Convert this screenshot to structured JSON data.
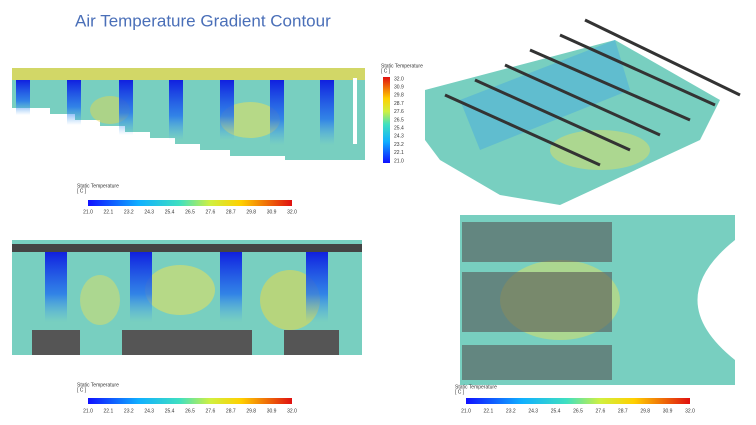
{
  "title": "Air Temperature Gradient Contour",
  "colorbars": [
    {
      "title": "Static Temperature",
      "unit": "[ C ]",
      "ticks": [
        "21.0",
        "22.1",
        "23.2",
        "24.3",
        "25.4",
        "26.5",
        "27.6",
        "28.7",
        "29.8",
        "30.9",
        "32.0"
      ]
    },
    {
      "title": "Static Temperature",
      "unit": "[ C ]",
      "ticks": [
        "32.0",
        "30.9",
        "29.8",
        "28.7",
        "27.6",
        "26.5",
        "25.4",
        "24.3",
        "23.2",
        "22.1",
        "21.0"
      ]
    },
    {
      "title": "Static Temperature",
      "unit": "[ C ]",
      "ticks": [
        "21.0",
        "22.1",
        "23.2",
        "24.3",
        "25.4",
        "26.5",
        "27.6",
        "28.7",
        "29.8",
        "30.9",
        "32.0"
      ]
    },
    {
      "title": "Static Temperature",
      "unit": "[ C ]",
      "ticks": [
        "21.0",
        "22.1",
        "23.2",
        "24.3",
        "25.4",
        "26.5",
        "27.6",
        "28.7",
        "29.8",
        "30.9",
        "32.0"
      ]
    }
  ]
}
